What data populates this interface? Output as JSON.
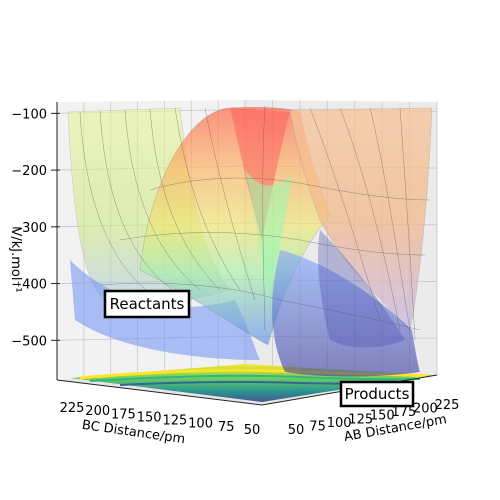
{
  "chart_data": {
    "type": "surface",
    "title": "",
    "zlabel": "V/kJ.mol⁻¹",
    "xlabel": "AB Distance/pm",
    "ylabel": "BC Distance/pm",
    "z_ticks": [
      "−100",
      "−200",
      "−300",
      "−400",
      "−500"
    ],
    "z_tick_values": [
      -100,
      -200,
      -300,
      -400,
      -500
    ],
    "x_ticks": [
      "50",
      "75",
      "100",
      "125",
      "150",
      "175",
      "200",
      "225"
    ],
    "y_ticks": [
      "225",
      "200",
      "175",
      "150",
      "125",
      "100",
      "75",
      "50"
    ],
    "zlim": [
      -570,
      -80
    ],
    "colormap_surface": "jet",
    "colormap_floor_contour": "viridis",
    "surface_alpha": 0.45,
    "grid": true,
    "annotations": [
      {
        "text": "Reactants",
        "region": "BC ~75 pm, AB large"
      },
      {
        "text": "Products",
        "region": "AB ~75 pm, BC large"
      }
    ]
  }
}
